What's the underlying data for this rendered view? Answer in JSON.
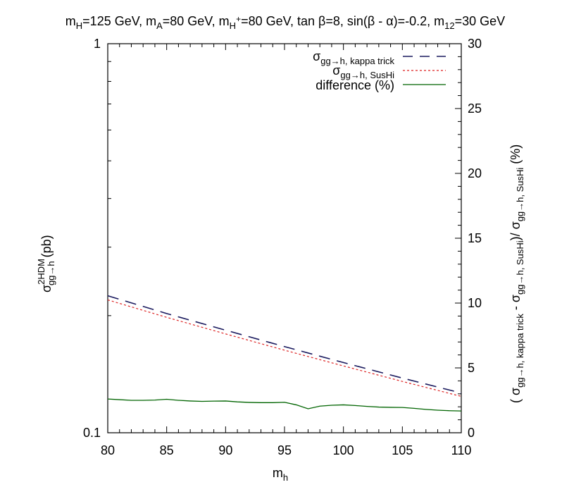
{
  "chart_data": {
    "type": "line",
    "title": {
      "mH_prefix": "m",
      "mH_sub": "H",
      "mH_val": "=125 GeV, ",
      "mA_prefix": "m",
      "mA_sub": "A",
      "mA_val": "=80 GeV, ",
      "mHp_prefix": "m",
      "mHp_sub": "H",
      "mHp_sup": "+",
      "mHp_val": "=80 GeV, tan β=8, sin(β - α)=-0.2, ",
      "m12_prefix": "m",
      "m12_sub": "12",
      "m12_val": "=30 GeV"
    },
    "xlabel": {
      "main": "m",
      "sub": "h"
    },
    "ylabel": {
      "main": "σ",
      "sup": "2HDM",
      "sub": "gg→h",
      "unit": " (pb)"
    },
    "y2label": {
      "open": "( σ",
      "sub1": "gg→h, kappa trick",
      "minus": " - σ",
      "sub2": "gg→h, SusHi",
      "div": ")/ σ",
      "sub3": "gg→h, SusHi",
      "close": " (%)"
    },
    "xlim": [
      80,
      110
    ],
    "ylim": [
      0.1,
      1
    ],
    "yscale": "log",
    "y2lim": [
      0,
      30
    ],
    "x_ticks": [
      "80",
      "85",
      "90",
      "95",
      "100",
      "105",
      "110"
    ],
    "y_ticks": [
      "0.1",
      "1"
    ],
    "y2_ticks": [
      "0",
      "5",
      "10",
      "15",
      "20",
      "25",
      "30"
    ],
    "legend": [
      {
        "main": "σ",
        "sub": "gg→h, kappa trick",
        "color": "#1a1a5e",
        "style": "long-dash"
      },
      {
        "main": "σ",
        "sub": "gg→h, SusHi",
        "color": "#dd2222",
        "style": "dotted"
      },
      {
        "main": "difference (%)",
        "sub": "",
        "color": "#006400",
        "style": "solid"
      }
    ],
    "legend_position": "top-right",
    "series": [
      {
        "name": "σ gg→h, kappa trick",
        "axis": "left",
        "color": "#1a1a5e",
        "style": "dashed",
        "x": [
          80,
          85,
          90,
          95,
          100,
          105,
          110
        ],
        "y": [
          0.225,
          0.2025,
          0.1835,
          0.1665,
          0.1515,
          0.1382,
          0.1265
        ]
      },
      {
        "name": "σ gg→h, SusHi",
        "axis": "left",
        "color": "#dd2222",
        "style": "dotted",
        "x": [
          80,
          85,
          90,
          95,
          100,
          105,
          110
        ],
        "y": [
          0.2195,
          0.198,
          0.1795,
          0.163,
          0.1485,
          0.1355,
          0.124
        ]
      },
      {
        "name": "difference (%)",
        "axis": "right",
        "color": "#006400",
        "style": "solid",
        "x": [
          80,
          81,
          82,
          83,
          84,
          85,
          86,
          87,
          88,
          89,
          90,
          91,
          92,
          93,
          94,
          95,
          96,
          97,
          98,
          99,
          100,
          101,
          102,
          103,
          104,
          105,
          106,
          107,
          108,
          109,
          110
        ],
        "y": [
          2.6,
          2.55,
          2.5,
          2.5,
          2.52,
          2.58,
          2.5,
          2.45,
          2.42,
          2.44,
          2.45,
          2.38,
          2.34,
          2.32,
          2.32,
          2.35,
          2.15,
          1.85,
          2.05,
          2.12,
          2.15,
          2.1,
          2.03,
          1.98,
          1.96,
          1.95,
          1.88,
          1.8,
          1.74,
          1.7,
          1.68
        ]
      }
    ]
  }
}
